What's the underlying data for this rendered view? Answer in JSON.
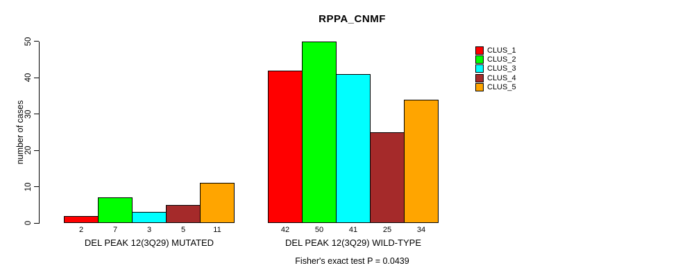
{
  "chart_data": {
    "type": "bar",
    "title": "RPPA_CNMF",
    "ylabel": "number of cases",
    "xlabel": "",
    "ylim": [
      0,
      50
    ],
    "yticks": [
      0,
      10,
      20,
      30,
      40,
      50
    ],
    "grid": false,
    "legend_position": "top-right",
    "categories": [
      "DEL PEAK 12(3Q29) MUTATED",
      "DEL PEAK 12(3Q29) WILD-TYPE"
    ],
    "series": [
      {
        "name": "CLUS_1",
        "color": "#FF0000",
        "values": [
          2,
          42
        ]
      },
      {
        "name": "CLUS_2",
        "color": "#00FF00",
        "values": [
          7,
          50
        ]
      },
      {
        "name": "CLUS_3",
        "color": "#00FFFF",
        "values": [
          3,
          41
        ]
      },
      {
        "name": "CLUS_4",
        "color": "#A52A2A",
        "values": [
          5,
          25
        ]
      },
      {
        "name": "CLUS_5",
        "color": "#FFA500",
        "values": [
          11,
          34
        ]
      }
    ],
    "bar_value_labels": {
      "DEL PEAK 12(3Q29) MUTATED": [
        2,
        7,
        3,
        5,
        11
      ],
      "DEL PEAK 12(3Q29) WILD-TYPE": [
        42,
        50,
        41,
        25,
        34
      ]
    },
    "annotation": "Fisher's exact test P = 0.0439",
    "axis_color": "#000000",
    "text_color": "#000000",
    "background_color": "#FFFFFF"
  }
}
